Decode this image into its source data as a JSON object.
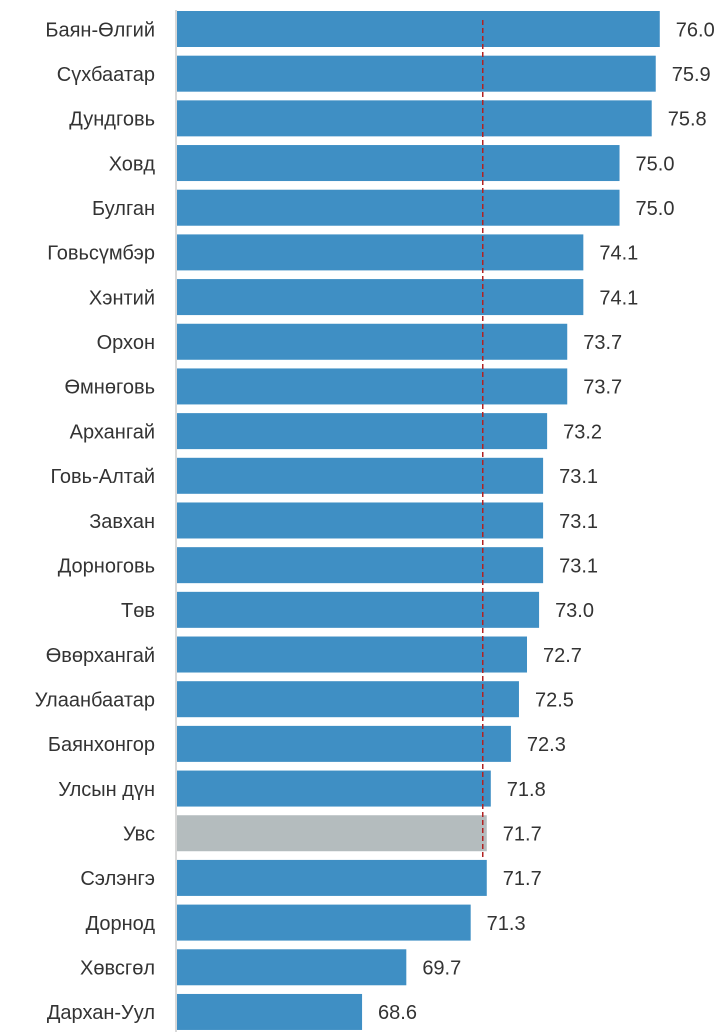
{
  "chart_data": {
    "type": "bar",
    "orientation": "horizontal",
    "categories": [
      "Баян-Өлгий",
      "Сүхбаатар",
      "Дундговь",
      "Ховд",
      "Булган",
      "Говьсүмбэр",
      "Хэнтий",
      "Орхон",
      "Өмнөговь",
      "Архангай",
      "Говь-Алтай",
      "Завхан",
      "Дорноговь",
      "Төв",
      "Өвөрхангай",
      "Улаанбаатар",
      "Баянхонгор",
      "Улсын дүн",
      "Увс",
      "Сэлэнгэ",
      "Дорнод",
      "Хөвсгөл",
      "Дархан-Уул"
    ],
    "values": [
      76.0,
      75.9,
      75.8,
      75.0,
      75.0,
      74.1,
      74.1,
      73.7,
      73.7,
      73.2,
      73.1,
      73.1,
      73.1,
      73.0,
      72.7,
      72.5,
      72.3,
      71.8,
      71.7,
      71.7,
      71.3,
      69.7,
      68.6
    ],
    "value_labels": [
      "76.0",
      "75.9",
      "75.8",
      "75.0",
      "75.0",
      "74.1",
      "74.1",
      "73.7",
      "73.7",
      "73.2",
      "73.1",
      "73.1",
      "73.1",
      "73.0",
      "72.7",
      "72.5",
      "72.3",
      "71.8",
      "71.7",
      "71.7",
      "71.3",
      "69.7",
      "68.6"
    ],
    "colors": [
      "#3f8fc4",
      "#3f8fc4",
      "#3f8fc4",
      "#3f8fc4",
      "#3f8fc4",
      "#3f8fc4",
      "#3f8fc4",
      "#3f8fc4",
      "#3f8fc4",
      "#3f8fc4",
      "#3f8fc4",
      "#3f8fc4",
      "#3f8fc4",
      "#3f8fc4",
      "#3f8fc4",
      "#3f8fc4",
      "#3f8fc4",
      "#3f8fc4",
      "#b4bcbe",
      "#3f8fc4",
      "#3f8fc4",
      "#3f8fc4",
      "#3f8fc4"
    ],
    "xlim": [
      64,
      77
    ],
    "reference_line": {
      "value": 71.6,
      "color": "#b22222"
    }
  }
}
